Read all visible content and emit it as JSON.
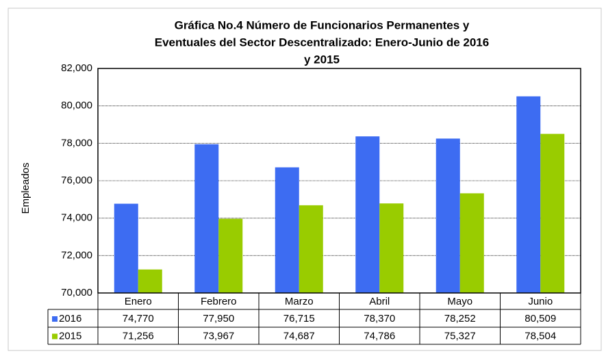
{
  "chart_data": {
    "type": "bar",
    "title": [
      "Gráfica No.4  Número de Funcionarios Permanentes y",
      "Eventuales del Sector Descentralizado: Enero-Junio de 2016",
      "y 2015"
    ],
    "y_label": "Empleados",
    "categories": [
      "Enero",
      "Febrero",
      "Marzo",
      "Abril",
      "Mayo",
      "Junio"
    ],
    "series": [
      {
        "name": "2016",
        "color": "#3d6cf2",
        "values": [
          74770,
          77950,
          76715,
          78370,
          78252,
          80509
        ],
        "value_labels": [
          "74,770",
          "77,950",
          "76,715",
          "78,370",
          "78,252",
          "80,509"
        ]
      },
      {
        "name": "2015",
        "color": "#99cc00",
        "values": [
          71256,
          73967,
          74687,
          74786,
          75327,
          78504
        ],
        "value_labels": [
          "71,256",
          "73,967",
          "74,687",
          "74,786",
          "75,327",
          "78,504"
        ]
      }
    ],
    "ylim": [
      70000,
      82000
    ],
    "yticks": [
      {
        "value": 70000,
        "label": "70,000"
      },
      {
        "value": 72000,
        "label": "72,000"
      },
      {
        "value": 74000,
        "label": "74,000"
      },
      {
        "value": 76000,
        "label": "76,000"
      },
      {
        "value": 78000,
        "label": "78,000"
      },
      {
        "value": 80000,
        "label": "80,000"
      },
      {
        "value": 82000,
        "label": "82,000"
      }
    ],
    "grid": true
  }
}
